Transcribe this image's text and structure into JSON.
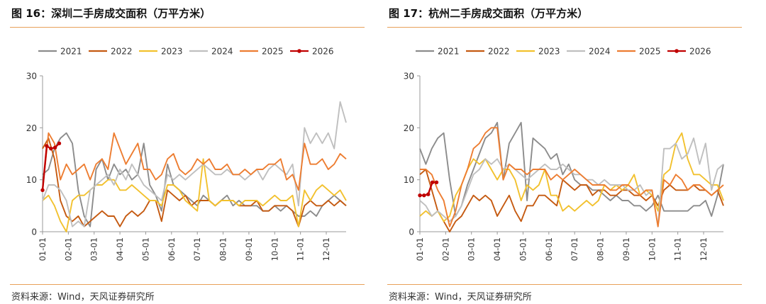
{
  "chart_data": [
    {
      "type": "line",
      "figure_label": "图 16：深圳二手房成交面积（万平方米）",
      "title": "深圳二手房成交面积（万平方米）",
      "source": "资料来源：Wind，天风证券研究所",
      "ylim": [
        0,
        30
      ],
      "yticks": [
        "0",
        "10",
        "20",
        "30"
      ],
      "xticks": [
        "01-01",
        "02-01",
        "03-01",
        "04-01",
        "05-01",
        "06-01",
        "07-01",
        "08-01",
        "09-01",
        "10-01",
        "11-01",
        "12-01"
      ],
      "legend_position": "top",
      "series": [
        {
          "name": "2021",
          "color": "#8c8c8c",
          "x": [
            0,
            1,
            2,
            3,
            4,
            5,
            6,
            7,
            8,
            9,
            10,
            11,
            12,
            13,
            14,
            15,
            16,
            17,
            18,
            19,
            20,
            21,
            22,
            23,
            24,
            25,
            26,
            27,
            28,
            29,
            30,
            31,
            32,
            33,
            34,
            35,
            36,
            37,
            38,
            39,
            40,
            41,
            42,
            43,
            44,
            45,
            46,
            47,
            48,
            49,
            50,
            51
          ],
          "values": [
            11,
            12,
            16,
            18,
            19,
            17,
            8,
            3,
            1,
            12,
            14,
            10,
            13,
            11,
            12,
            10,
            11,
            17,
            9,
            7,
            4,
            13,
            9,
            8,
            7,
            6,
            5,
            7,
            6,
            5,
            6,
            7,
            5,
            6,
            5,
            5,
            5,
            4,
            4,
            5,
            4,
            5,
            4,
            3,
            3,
            4,
            3,
            5,
            6,
            7,
            6,
            5
          ]
        },
        {
          "name": "2022",
          "color": "#c55a11",
          "x": [
            0,
            1,
            2,
            3,
            4,
            5,
            6,
            7,
            8,
            9,
            10,
            11,
            12,
            13,
            14,
            15,
            16,
            17,
            18,
            19,
            20,
            21,
            22,
            23,
            24,
            25,
            26,
            27,
            28,
            29,
            30,
            31,
            32,
            33,
            34,
            35,
            36,
            37,
            38,
            39,
            40,
            41,
            42,
            43,
            44,
            45,
            46,
            47,
            48,
            49,
            50,
            51
          ],
          "values": [
            16,
            18,
            14,
            6,
            3,
            2,
            3,
            1,
            2,
            3,
            4,
            3,
            3,
            1,
            3,
            4,
            3,
            4,
            6,
            6,
            2,
            8,
            7,
            6,
            7,
            5,
            6,
            6,
            6,
            5,
            6,
            6,
            6,
            5,
            5,
            5,
            6,
            4,
            4,
            5,
            5,
            5,
            4,
            1,
            5,
            6,
            5,
            5,
            6,
            5,
            6,
            5
          ]
        },
        {
          "name": "2023",
          "color": "#f2c12e",
          "x": [
            0,
            1,
            2,
            3,
            4,
            5,
            6,
            7,
            8,
            9,
            10,
            11,
            12,
            13,
            14,
            15,
            16,
            17,
            18,
            19,
            20,
            21,
            22,
            23,
            24,
            25,
            26,
            27,
            28,
            29,
            30,
            31,
            32,
            33,
            34,
            35,
            36,
            37,
            38,
            39,
            40,
            41,
            42,
            43,
            44,
            45,
            46,
            47,
            48,
            49,
            50,
            51
          ],
          "values": [
            6,
            7,
            5,
            2,
            0,
            6,
            7,
            7,
            8,
            9,
            9,
            10,
            10,
            8,
            8,
            9,
            8,
            7,
            6,
            6,
            5,
            9,
            9,
            8,
            6,
            5,
            4,
            14,
            6,
            5,
            6,
            6,
            6,
            5,
            6,
            6,
            6,
            5,
            6,
            7,
            6,
            6,
            7,
            1,
            8,
            6,
            8,
            9,
            8,
            7,
            8,
            6
          ]
        },
        {
          "name": "2024",
          "color": "#bfbfbf",
          "x": [
            0,
            1,
            2,
            3,
            4,
            5,
            6,
            7,
            8,
            9,
            10,
            11,
            12,
            13,
            14,
            15,
            16,
            17,
            18,
            19,
            20,
            21,
            22,
            23,
            24,
            25,
            26,
            27,
            28,
            29,
            30,
            31,
            32,
            33,
            34,
            35,
            36,
            37,
            38,
            39,
            40,
            41,
            42,
            43,
            44,
            45,
            46,
            47,
            48,
            49,
            50,
            51
          ],
          "values": [
            6,
            9,
            9,
            8,
            6,
            1,
            2,
            1,
            8,
            9,
            10,
            11,
            9,
            12,
            10,
            13,
            11,
            9,
            8,
            7,
            6,
            11,
            10,
            11,
            10,
            11,
            12,
            13,
            12,
            11,
            11,
            12,
            11,
            11,
            10,
            11,
            12,
            10,
            12,
            13,
            12,
            11,
            13,
            5,
            20,
            17,
            19,
            17,
            19,
            16,
            25,
            21
          ]
        },
        {
          "name": "2025",
          "color": "#ed7d31",
          "x": [
            0,
            1,
            2,
            3,
            4,
            5,
            6,
            7,
            8,
            9,
            10,
            11,
            12,
            13,
            14,
            15,
            16,
            17,
            18,
            19,
            20,
            21,
            22,
            23,
            24,
            25,
            26,
            27,
            28,
            29,
            30,
            31,
            32,
            33,
            34,
            35,
            36,
            37,
            38,
            39,
            40,
            41,
            42,
            43,
            44,
            45,
            46,
            47,
            48,
            49,
            50,
            51
          ],
          "values": [
            8,
            19,
            17,
            10,
            13,
            11,
            12,
            13,
            10,
            13,
            14,
            12,
            19,
            16,
            13,
            15,
            17,
            12,
            12,
            10,
            11,
            14,
            15,
            12,
            11,
            12,
            14,
            13,
            14,
            12,
            12,
            13,
            11,
            11,
            12,
            11,
            12,
            12,
            13,
            13,
            14,
            10,
            11,
            8,
            17,
            13,
            13,
            14,
            12,
            13,
            15,
            14
          ]
        },
        {
          "name": "2026",
          "color": "#c00000",
          "x": [
            0,
            0.7,
            1.4,
            2.1,
            2.8
          ],
          "values": [
            8,
            16.5,
            16,
            16.2,
            17
          ]
        }
      ]
    },
    {
      "type": "line",
      "figure_label": "图 17：杭州二手房成交面积（万平方米）",
      "title": "杭州二手房成交面积（万平方米）",
      "source": "资料来源：Wind，天风证券研究所",
      "ylim": [
        0,
        30
      ],
      "yticks": [
        "0",
        "10",
        "20",
        "30"
      ],
      "xticks": [
        "01-01",
        "02-01",
        "03-01",
        "04-01",
        "05-01",
        "06-01",
        "07-01",
        "08-01",
        "09-01",
        "10-01",
        "11-01",
        "12-01"
      ],
      "legend_position": "top",
      "series": [
        {
          "name": "2021",
          "color": "#8c8c8c",
          "x": [
            0,
            1,
            2,
            3,
            4,
            5,
            6,
            7,
            8,
            9,
            10,
            11,
            12,
            13,
            14,
            15,
            16,
            17,
            18,
            19,
            20,
            21,
            22,
            23,
            24,
            25,
            26,
            27,
            28,
            29,
            30,
            31,
            32,
            33,
            34,
            35,
            36,
            37,
            38,
            39,
            40,
            41,
            42,
            43,
            44,
            45,
            46,
            47,
            48,
            49,
            50,
            51
          ],
          "values": [
            16,
            13,
            16,
            18,
            19,
            10,
            3,
            5,
            9,
            12,
            15,
            18,
            19,
            21,
            10,
            17,
            19,
            21,
            6,
            18,
            17,
            16,
            14,
            15,
            11,
            13,
            10,
            9,
            9,
            8,
            8,
            7,
            6,
            7,
            6,
            6,
            5,
            5,
            4,
            5,
            7,
            4,
            4,
            4,
            4,
            4,
            5,
            5,
            6,
            3,
            7,
            13
          ]
        },
        {
          "name": "2022",
          "color": "#c55a11",
          "x": [
            0,
            1,
            2,
            3,
            4,
            5,
            6,
            7,
            8,
            9,
            10,
            11,
            12,
            13,
            14,
            15,
            16,
            17,
            18,
            19,
            20,
            21,
            22,
            23,
            24,
            25,
            26,
            27,
            28,
            29,
            30,
            31,
            32,
            33,
            34,
            35,
            36,
            37,
            38,
            39,
            40,
            41,
            42,
            43,
            44,
            45,
            46,
            47,
            48,
            49,
            50,
            51
          ],
          "values": [
            11,
            12,
            8,
            4,
            2,
            0,
            2,
            3,
            5,
            7,
            6,
            7,
            6,
            3,
            5,
            7,
            4,
            2,
            5,
            5,
            7,
            7,
            6,
            5,
            10,
            9,
            8,
            9,
            9,
            7,
            8,
            8,
            7,
            7,
            8,
            8,
            7,
            7,
            6,
            7,
            5,
            8,
            9,
            8,
            8,
            8,
            9,
            8,
            8,
            7,
            8,
            5
          ]
        },
        {
          "name": "2023",
          "color": "#f2c12e",
          "x": [
            0,
            1,
            2,
            3,
            4,
            5,
            6,
            7,
            8,
            9,
            10,
            11,
            12,
            13,
            14,
            15,
            16,
            17,
            18,
            19,
            20,
            21,
            22,
            23,
            24,
            25,
            26,
            27,
            28,
            29,
            30,
            31,
            32,
            33,
            34,
            35,
            36,
            37,
            38,
            39,
            40,
            41,
            42,
            43,
            44,
            45,
            46,
            47,
            48,
            49,
            50,
            51
          ],
          "values": [
            3,
            4,
            3,
            4,
            2,
            3,
            7,
            9,
            12,
            14,
            13,
            14,
            12,
            10,
            12,
            12,
            10,
            6,
            9,
            8,
            9,
            12,
            7,
            7,
            4,
            5,
            4,
            5,
            6,
            5,
            6,
            9,
            8,
            9,
            8,
            9,
            11,
            7,
            8,
            7,
            4,
            11,
            12,
            17,
            19,
            14,
            11,
            11,
            10,
            9,
            9,
            6
          ]
        },
        {
          "name": "2024",
          "color": "#bfbfbf",
          "x": [
            0,
            1,
            2,
            3,
            4,
            5,
            6,
            7,
            8,
            9,
            10,
            11,
            12,
            13,
            14,
            15,
            16,
            17,
            18,
            19,
            20,
            21,
            22,
            23,
            24,
            25,
            26,
            27,
            28,
            29,
            30,
            31,
            32,
            33,
            34,
            35,
            36,
            37,
            38,
            39,
            40,
            41,
            42,
            43,
            44,
            45,
            46,
            47,
            48,
            49,
            50,
            51
          ],
          "values": [
            6,
            5,
            3,
            4,
            3,
            2,
            3,
            5,
            8,
            11,
            12,
            14,
            13,
            14,
            12,
            13,
            12,
            11,
            10,
            11,
            12,
            13,
            12,
            12,
            13,
            12,
            11,
            11,
            10,
            10,
            9,
            10,
            9,
            9,
            9,
            8,
            8,
            9,
            7,
            8,
            1,
            16,
            16,
            17,
            14,
            15,
            18,
            13,
            17,
            8,
            12,
            13
          ]
        },
        {
          "name": "2025",
          "color": "#ed7d31",
          "x": [
            0,
            1,
            2,
            3,
            4,
            5,
            6,
            7,
            8,
            9,
            10,
            11,
            12,
            13,
            14,
            15,
            16,
            17,
            18,
            19,
            20,
            21,
            22,
            23,
            24,
            25,
            26,
            27,
            28,
            29,
            30,
            31,
            32,
            33,
            34,
            35,
            36,
            37,
            38,
            39,
            40,
            41,
            42,
            43,
            44,
            45,
            46,
            47,
            48,
            49,
            50,
            51
          ],
          "values": [
            12,
            12,
            11,
            8,
            6,
            1,
            4,
            9,
            12,
            16,
            17,
            19,
            20,
            20,
            10,
            13,
            12,
            12,
            11,
            12,
            12,
            12,
            10,
            11,
            10,
            11,
            12,
            11,
            10,
            9,
            9,
            9,
            8,
            8,
            9,
            9,
            8,
            7,
            8,
            8,
            1,
            10,
            9,
            11,
            10,
            8,
            9,
            9,
            8,
            7,
            8,
            9
          ]
        },
        {
          "name": "2026",
          "color": "#c00000",
          "x": [
            0,
            0.7,
            1.4,
            2.1,
            2.8
          ],
          "values": [
            7,
            7,
            7.2,
            9.5,
            9.5
          ]
        }
      ]
    }
  ]
}
